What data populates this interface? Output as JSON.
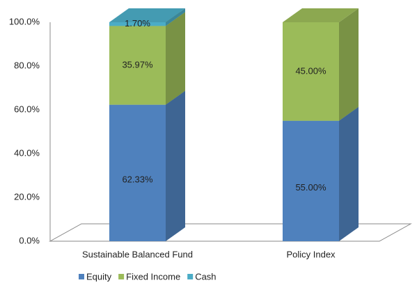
{
  "chart_data": {
    "type": "bar3d_stacked",
    "categories": [
      "Sustainable Balanced  Fund",
      "Policy Index"
    ],
    "series": [
      {
        "name": "Equity",
        "color": "#4f81bd",
        "values": [
          62.33,
          55.0
        ],
        "value_labels": [
          "62.33%",
          "55.00%"
        ]
      },
      {
        "name": "Fixed Income",
        "color": "#9bbb59",
        "values": [
          35.97,
          45.0
        ],
        "value_labels": [
          "35.97%",
          "45.00%"
        ]
      },
      {
        "name": "Cash",
        "color": "#4bacc6",
        "values": [
          1.7,
          null
        ],
        "value_labels": [
          "1.70%",
          null
        ]
      }
    ],
    "ylim": [
      0,
      100
    ],
    "yticks": [
      {
        "value": 0,
        "label": "0.0%"
      },
      {
        "value": 20,
        "label": "20.0%"
      },
      {
        "value": 40,
        "label": "40.0%"
      },
      {
        "value": 60,
        "label": "60.0%"
      },
      {
        "value": 80,
        "label": "80.0%"
      },
      {
        "value": 100,
        "label": "100.0%"
      }
    ],
    "legend": "bottom"
  }
}
